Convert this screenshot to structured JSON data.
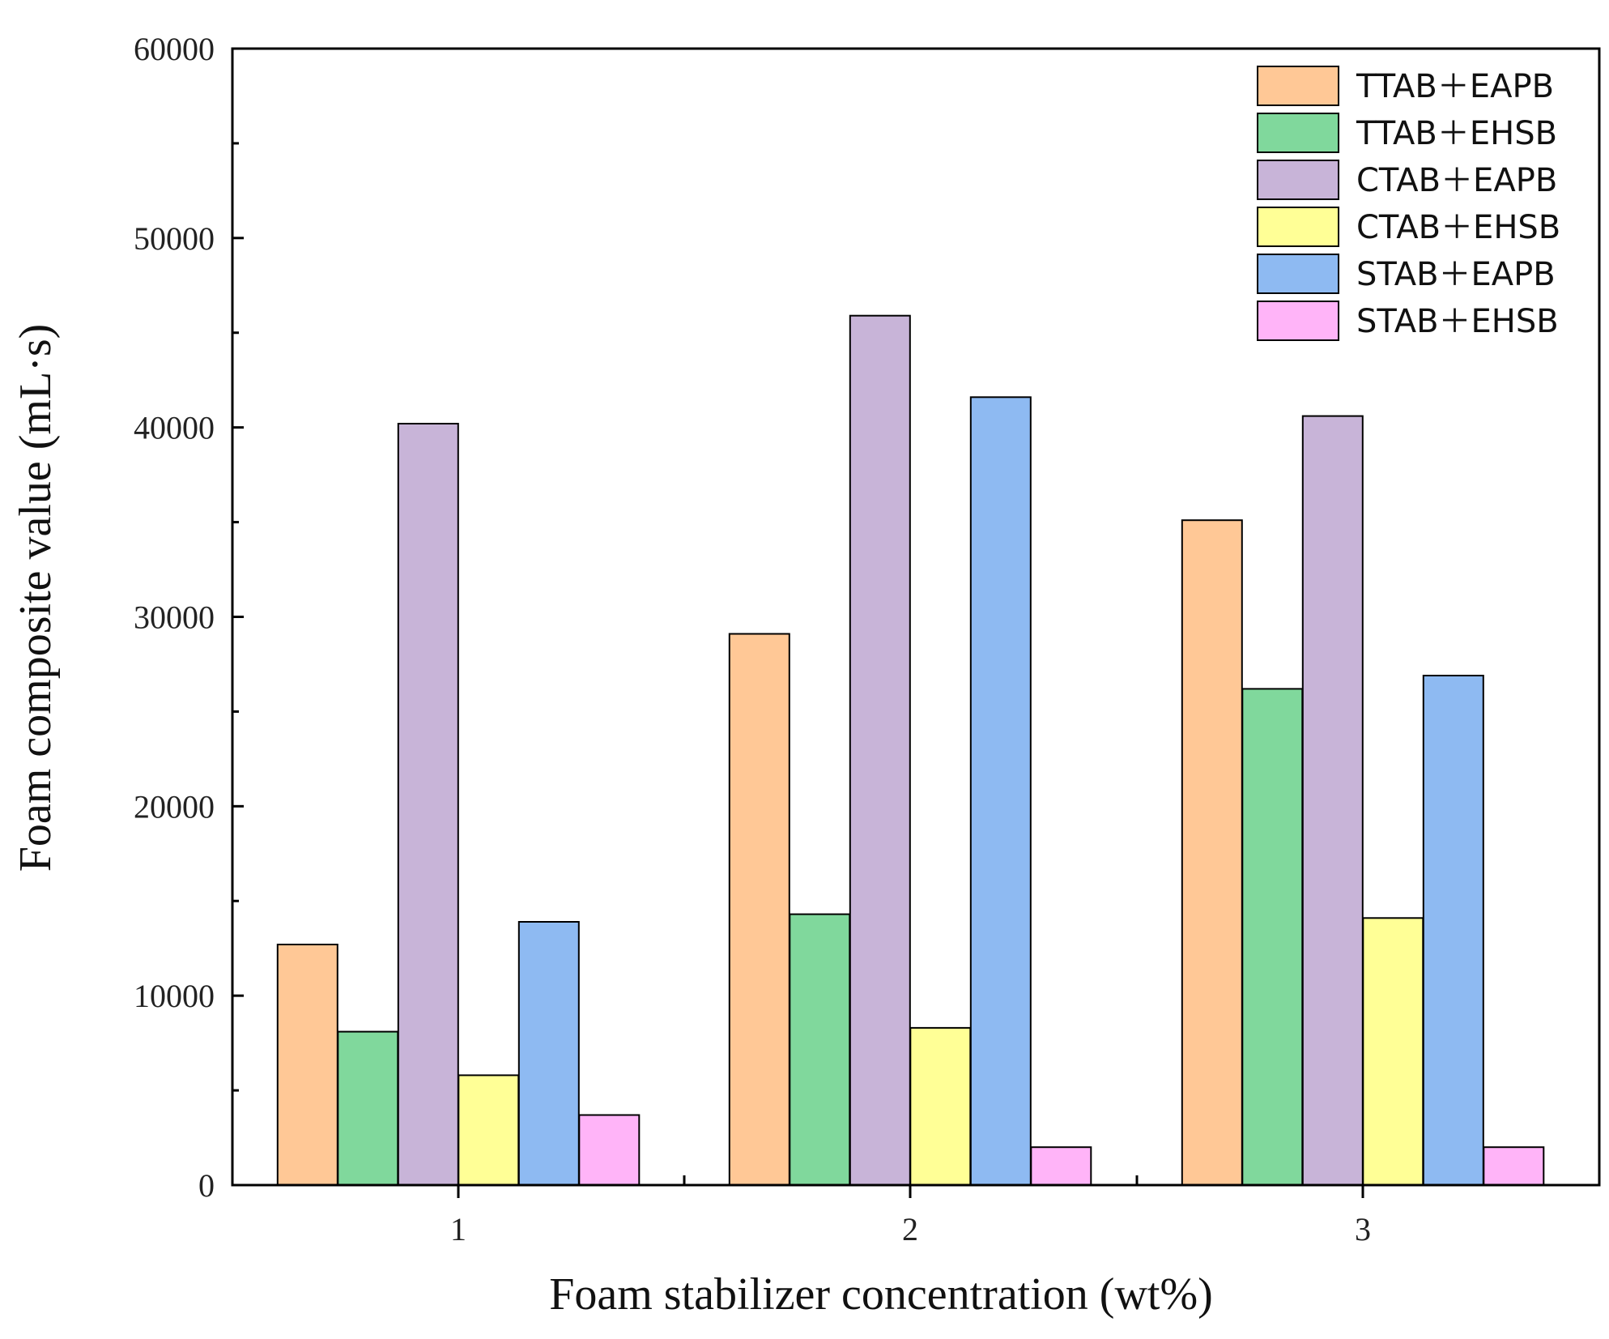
{
  "chart_data": {
    "type": "bar",
    "title": "",
    "xlabel": "Foam stabilizer concentration (wt%)",
    "ylabel": "Foam composite value (mL·s)",
    "categories": [
      "1",
      "2",
      "3"
    ],
    "ylim": [
      0,
      60000
    ],
    "yticks": [
      0,
      10000,
      20000,
      30000,
      40000,
      50000,
      60000
    ],
    "ytick_labels": [
      "0",
      "10000",
      "20000",
      "30000",
      "40000",
      "50000",
      "60000"
    ],
    "legend_position": "top-right",
    "grid": false,
    "series": [
      {
        "name": "TTAB＋EAPB",
        "color": "#ffc896",
        "values": [
          12700,
          29100,
          35100
        ]
      },
      {
        "name": "TTAB＋EHSB",
        "color": "#80d89c",
        "values": [
          8100,
          14300,
          26200
        ]
      },
      {
        "name": "CTAB＋EAPB",
        "color": "#c8b4d8",
        "values": [
          40200,
          45900,
          40600
        ]
      },
      {
        "name": "CTAB＋EHSB",
        "color": "#ffff96",
        "values": [
          5800,
          8300,
          14100
        ]
      },
      {
        "name": "STAB＋EAPB",
        "color": "#8ebaf2",
        "values": [
          13900,
          41600,
          26900
        ]
      },
      {
        "name": "STAB＋EHSB",
        "color": "#ffb4f8",
        "values": [
          3700,
          2000,
          2000
        ]
      }
    ]
  }
}
